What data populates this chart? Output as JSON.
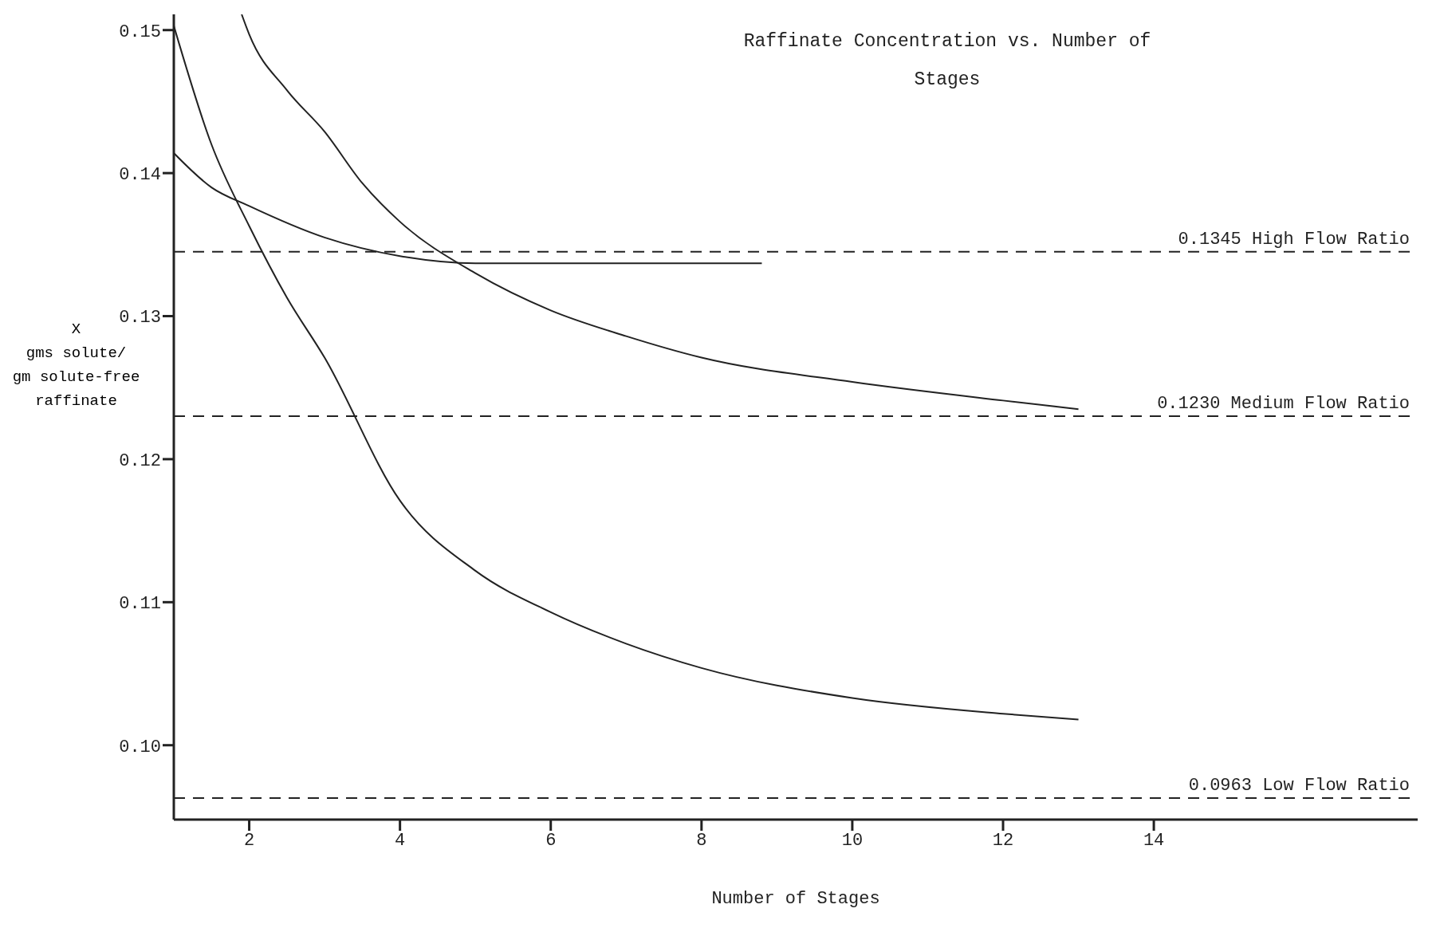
{
  "chart_data": {
    "type": "line",
    "title": "Raffinate Concentration vs. Number of Stages",
    "xlabel": "Number of Stages",
    "ylabel": "X\ngms solute/\ngm solute-free\nraffinate",
    "xlim": [
      1,
      17.5
    ],
    "xticks": [
      2,
      4,
      6,
      8,
      10,
      12,
      14
    ],
    "ylim": [
      0.0948,
      0.1511
    ],
    "yticks": [
      {
        "value": 0.1,
        "label": "0.10"
      },
      {
        "value": 0.11,
        "label": "0.11"
      },
      {
        "value": 0.12,
        "label": "0.12"
      },
      {
        "value": 0.13,
        "label": "0.13"
      },
      {
        "value": 0.14,
        "label": "0.14"
      },
      {
        "value": 0.15,
        "label": "0.15"
      }
    ],
    "grid": false,
    "marker": "none",
    "line_style": "solid",
    "series": [
      {
        "color": "#222222",
        "x": [
          1,
          1.5,
          2,
          3,
          4,
          5,
          6,
          7,
          8.8
        ],
        "values": [
          0.1414,
          0.139,
          0.1377,
          0.1355,
          0.1342,
          0.1337,
          0.1337,
          0.1337,
          0.1337
        ]
      },
      {
        "color": "#222222",
        "x": [
          1.9,
          2,
          2.5,
          3,
          3.5,
          4,
          5,
          6,
          7,
          8,
          10,
          12,
          13
        ],
        "values": [
          0.1511,
          0.1497,
          0.1458,
          0.1429,
          0.1393,
          0.1366,
          0.133,
          0.1304,
          0.1286,
          0.1271,
          0.1254,
          0.1241,
          0.1235
        ]
      },
      {
        "color": "#222222",
        "x": [
          1,
          1.5,
          2,
          2.5,
          3,
          4,
          5,
          6,
          7,
          8,
          10,
          12,
          13
        ],
        "values": [
          0.1503,
          0.142,
          0.1363,
          0.1313,
          0.1271,
          0.1171,
          0.1122,
          0.1093,
          0.1071,
          0.1054,
          0.1033,
          0.1022,
          0.1018
        ]
      }
    ],
    "ref_lines": [
      {
        "axis": "y",
        "value": 0.1345,
        "label": "0.1345  High Flow Ratio",
        "color": "#222222",
        "line_style": "dashed"
      },
      {
        "axis": "y",
        "value": 0.123,
        "label": "0.1230 Medium Flow Ratio",
        "color": "#222222",
        "line_style": "dashed"
      },
      {
        "axis": "y",
        "value": 0.0963,
        "label": "0.0963 Low Flow Ratio",
        "color": "#222222",
        "line_style": "dashed"
      }
    ]
  }
}
